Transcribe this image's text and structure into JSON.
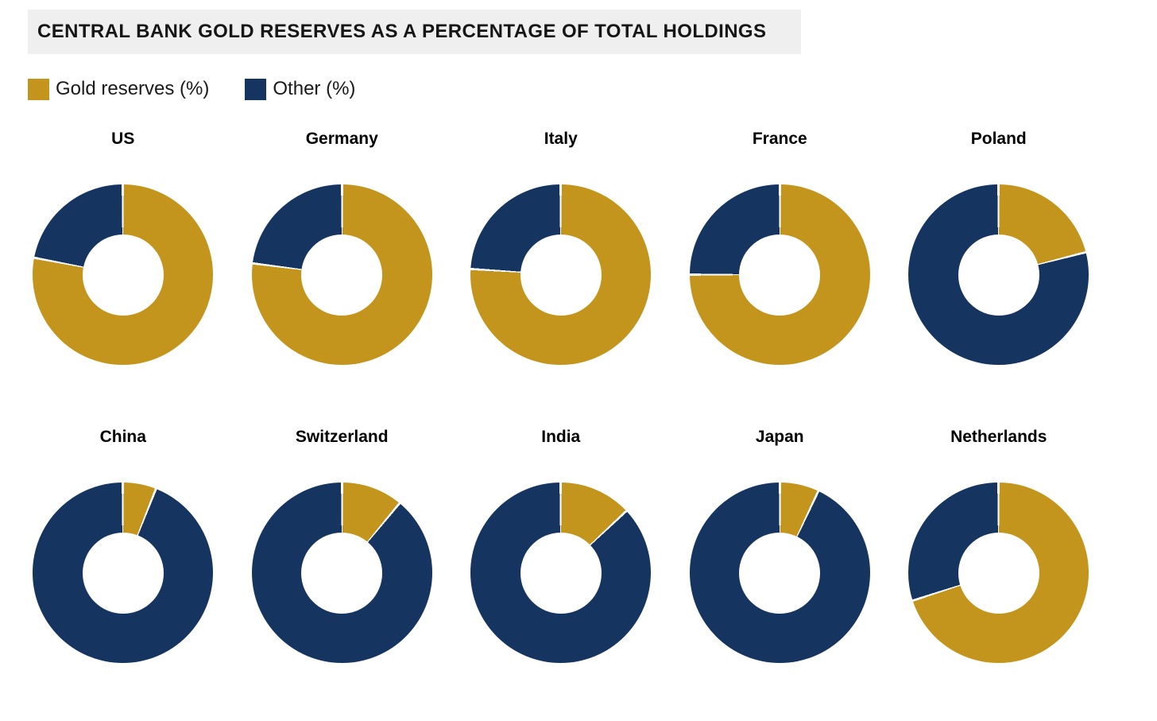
{
  "header": {
    "title": "CENTRAL BANK GOLD RESERVES AS A PERCENTAGE OF TOTAL HOLDINGS"
  },
  "chart_data": {
    "type": "pie",
    "variant": "donut-small-multiples",
    "title": "CENTRAL BANK GOLD RESERVES AS A PERCENTAGE OF TOTAL HOLDINGS",
    "legend_position": "top-left",
    "start_angle_deg": 0,
    "direction": "clockwise",
    "hole_ratio": 0.45,
    "series": [
      {
        "name": "Gold reserves (%)",
        "color": "#C4951C"
      },
      {
        "name": "Other (%)",
        "color": "#163460"
      }
    ],
    "donuts": [
      {
        "label": "US",
        "values": [
          78,
          22
        ]
      },
      {
        "label": "Germany",
        "values": [
          77,
          23
        ]
      },
      {
        "label": "Italy",
        "values": [
          76,
          24
        ]
      },
      {
        "label": "France",
        "values": [
          75,
          25
        ]
      },
      {
        "label": "Poland",
        "values": [
          21,
          79
        ]
      },
      {
        "label": "China",
        "values": [
          6,
          94
        ]
      },
      {
        "label": "Switzerland",
        "values": [
          11,
          89
        ]
      },
      {
        "label": "India",
        "values": [
          13,
          87
        ]
      },
      {
        "label": "Japan",
        "values": [
          7,
          93
        ]
      },
      {
        "label": "Netherlands",
        "values": [
          70,
          30
        ]
      }
    ]
  },
  "colors": {
    "gold": "#C4951C",
    "navy": "#163460",
    "title_band_bg": "#EFEFEF",
    "separator": "#FFFFFF"
  }
}
